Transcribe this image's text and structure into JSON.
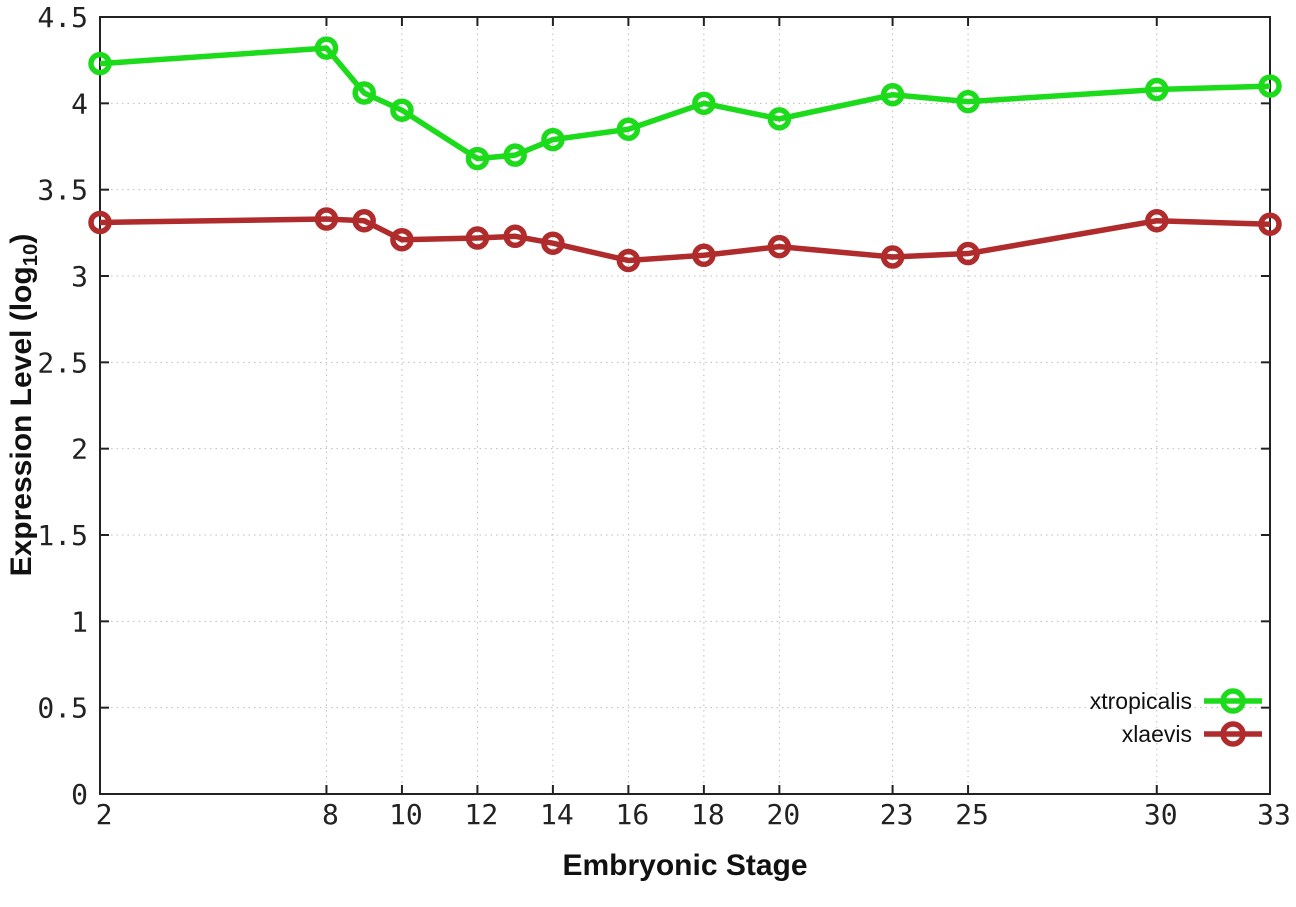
{
  "chart_data": {
    "type": "line",
    "title": "",
    "xlabel": "Embryonic Stage",
    "ylabel": "Expression Level (log10)",
    "ylabel_main": "Expression Level (log",
    "ylabel_sub": "10",
    "ylabel_end": ")",
    "x": [
      2,
      8,
      9,
      10,
      12,
      13,
      14,
      16,
      18,
      20,
      23,
      25,
      30,
      33
    ],
    "xlim": [
      2,
      33
    ],
    "ylim": [
      0,
      4.5
    ],
    "x_ticks": [
      2,
      8,
      10,
      12,
      14,
      16,
      18,
      20,
      23,
      25,
      30,
      33
    ],
    "x_tick_labels": [
      "2",
      "8",
      "10",
      "12",
      "14",
      "16",
      "18",
      "20",
      "23",
      "25",
      "30",
      "33"
    ],
    "y_ticks": [
      0,
      0.5,
      1,
      1.5,
      2,
      2.5,
      3,
      3.5,
      4,
      4.5
    ],
    "y_tick_labels": [
      "0",
      "0.5",
      "1",
      "1.5",
      "2",
      "2.5",
      "3",
      "3.5",
      "4",
      "4.5"
    ],
    "grid": true,
    "marker": "open-circle",
    "legend_position": "inside-bottom-right",
    "axis_color": "#222222",
    "grid_color": "#bdbdbd",
    "series": [
      {
        "name": "xtropicalis",
        "color": "#1bdb1b",
        "values": [
          4.23,
          4.32,
          4.06,
          3.96,
          3.68,
          3.7,
          3.79,
          3.85,
          4.0,
          3.91,
          4.05,
          4.01,
          4.08,
          4.1
        ]
      },
      {
        "name": "xlaevis",
        "color": "#b02b2b",
        "values": [
          3.31,
          3.33,
          3.32,
          3.21,
          3.22,
          3.23,
          3.19,
          3.09,
          3.12,
          3.17,
          3.11,
          3.13,
          3.32,
          3.3
        ]
      }
    ]
  }
}
